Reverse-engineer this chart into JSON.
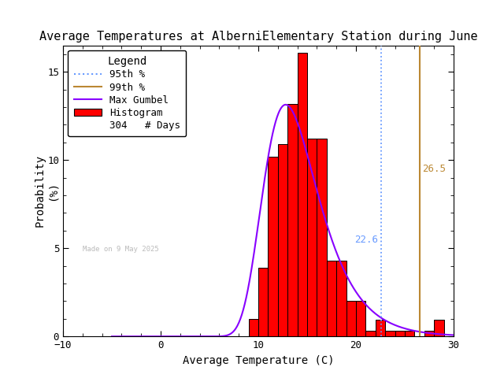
{
  "title": "Average Temperatures at AlberniElementary Station during June",
  "xlabel": "Average Temperature (C)",
  "ylabel": "Probability\n(%)",
  "xlim": [
    -10,
    30
  ],
  "ylim": [
    0,
    16.5
  ],
  "xticks": [
    -10,
    0,
    10,
    20,
    30
  ],
  "yticks": [
    0,
    5,
    10,
    15
  ],
  "bar_edges": [
    9,
    10,
    11,
    12,
    13,
    14,
    15,
    16,
    17,
    18,
    19,
    20,
    21,
    22,
    23,
    24,
    25,
    26,
    27,
    28,
    29,
    30
  ],
  "bar_heights": [
    0.98,
    3.9,
    10.2,
    10.9,
    13.2,
    16.1,
    11.2,
    11.2,
    4.3,
    4.3,
    2.0,
    2.0,
    0.3,
    0.95,
    0.3,
    0.3,
    0.3,
    0.0,
    0.3,
    0.95,
    0.0
  ],
  "bar_color": "#ff0000",
  "bar_edgecolor": "#000000",
  "gumbel_color": "#8800ff",
  "pct95_x": 22.6,
  "pct95_color": "#6699ff",
  "pct99_x": 26.5,
  "pct99_color": "#bb8833",
  "pct95_label": "22.6",
  "pct99_label": "26.5",
  "n_days": 304,
  "watermark": "Made on 9 May 2025",
  "background_color": "#ffffff",
  "legend_title": "Legend",
  "font_family": "monospace",
  "gumbel_mu": 12.8,
  "gumbel_beta": 2.8
}
